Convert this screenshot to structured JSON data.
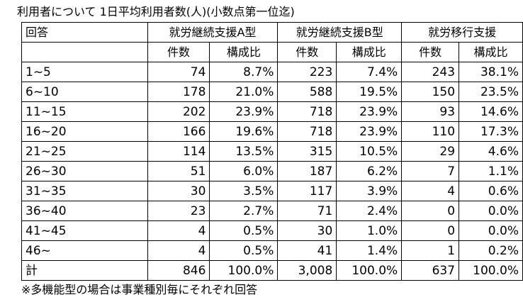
{
  "title": "利用者について 1日平均利用者数(人)(小数点第一位迄)",
  "note": "※多機能型の場合は事業種別毎にそれぞれ回答",
  "table": {
    "header_answer": "回答",
    "groups": [
      "就労継続支援A型",
      "就労継続支援B型",
      "就労移行支援"
    ],
    "sub_headers": [
      "件数",
      "構成比",
      "件数",
      "構成比",
      "件数",
      "構成比"
    ],
    "rows": [
      {
        "label": "1~5",
        "cells": [
          "74",
          "8.7%",
          "223",
          "7.4%",
          "243",
          "38.1%"
        ]
      },
      {
        "label": "6~10",
        "cells": [
          "178",
          "21.0%",
          "588",
          "19.5%",
          "150",
          "23.5%"
        ]
      },
      {
        "label": "11~15",
        "cells": [
          "202",
          "23.9%",
          "718",
          "23.9%",
          "93",
          "14.6%"
        ]
      },
      {
        "label": "16~20",
        "cells": [
          "166",
          "19.6%",
          "718",
          "23.9%",
          "110",
          "17.3%"
        ]
      },
      {
        "label": "21~25",
        "cells": [
          "114",
          "13.5%",
          "315",
          "10.5%",
          "29",
          "4.6%"
        ]
      },
      {
        "label": "26~30",
        "cells": [
          "51",
          "6.0%",
          "187",
          "6.2%",
          "7",
          "1.1%"
        ]
      },
      {
        "label": "31~35",
        "cells": [
          "30",
          "3.5%",
          "117",
          "3.9%",
          "4",
          "0.6%"
        ]
      },
      {
        "label": "36~40",
        "cells": [
          "23",
          "2.7%",
          "71",
          "2.4%",
          "0",
          "0.0%"
        ]
      },
      {
        "label": "41~45",
        "cells": [
          "4",
          "0.5%",
          "30",
          "1.0%",
          "0",
          "0.0%"
        ]
      },
      {
        "label": "46~",
        "cells": [
          "4",
          "0.5%",
          "41",
          "1.4%",
          "1",
          "0.2%"
        ]
      },
      {
        "label": "計",
        "cells": [
          "846",
          "100.0%",
          "3,008",
          "100.0%",
          "637",
          "100.0%"
        ]
      }
    ]
  }
}
